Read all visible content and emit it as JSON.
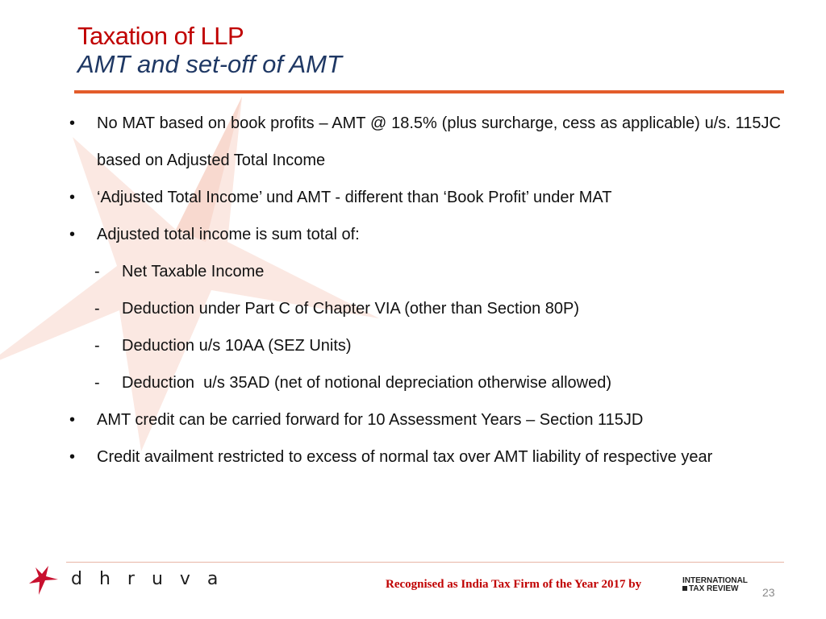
{
  "slide": {
    "title": "Taxation of LLP",
    "subtitle": "AMT and set-off of AMT",
    "page_number": "23"
  },
  "bullets": [
    {
      "type": "bullet",
      "marker": "•",
      "text": "No MAT based on book profits – AMT @ 18.5% (plus surcharge, cess as applicable) u/s. 115JC based on Adjusted Total Income"
    },
    {
      "type": "bullet",
      "marker": "•",
      "text": "‘Adjusted Total Income’ und AMT - different than ‘Book Profit’ under MAT"
    },
    {
      "type": "bullet",
      "marker": "•",
      "text": "Adjusted total income is sum total of:"
    },
    {
      "type": "sub",
      "marker": "-",
      "text": "Net Taxable Income"
    },
    {
      "type": "sub",
      "marker": "-",
      "text": "Deduction under Part C of Chapter VIA (other than Section 80P)"
    },
    {
      "type": "sub",
      "marker": "-",
      "text": "Deduction u/s 10AA (SEZ Units)"
    },
    {
      "type": "sub",
      "marker": "-",
      "text": "Deduction  u/s 35AD (net of notional depreciation otherwise allowed)"
    },
    {
      "type": "bullet",
      "marker": "•",
      "text": "AMT credit can be carried forward for 10 Assessment Years – Section 115JD"
    },
    {
      "type": "bullet",
      "marker": "•",
      "text": "Credit availment restricted to excess of normal tax over AMT liability of respective year"
    }
  ],
  "footer": {
    "logo_text": "dhruva",
    "recognition": "Recognised as India Tax Firm of the Year 2017 by",
    "partner_logo_line1": "INTERNATIONAL",
    "partner_logo_line2": "TAX REVIEW"
  },
  "colors": {
    "title": "#c00000",
    "subtitle": "#1f3864",
    "accent_rule": "#e35c2a",
    "watermark": "#fbe3dc"
  }
}
